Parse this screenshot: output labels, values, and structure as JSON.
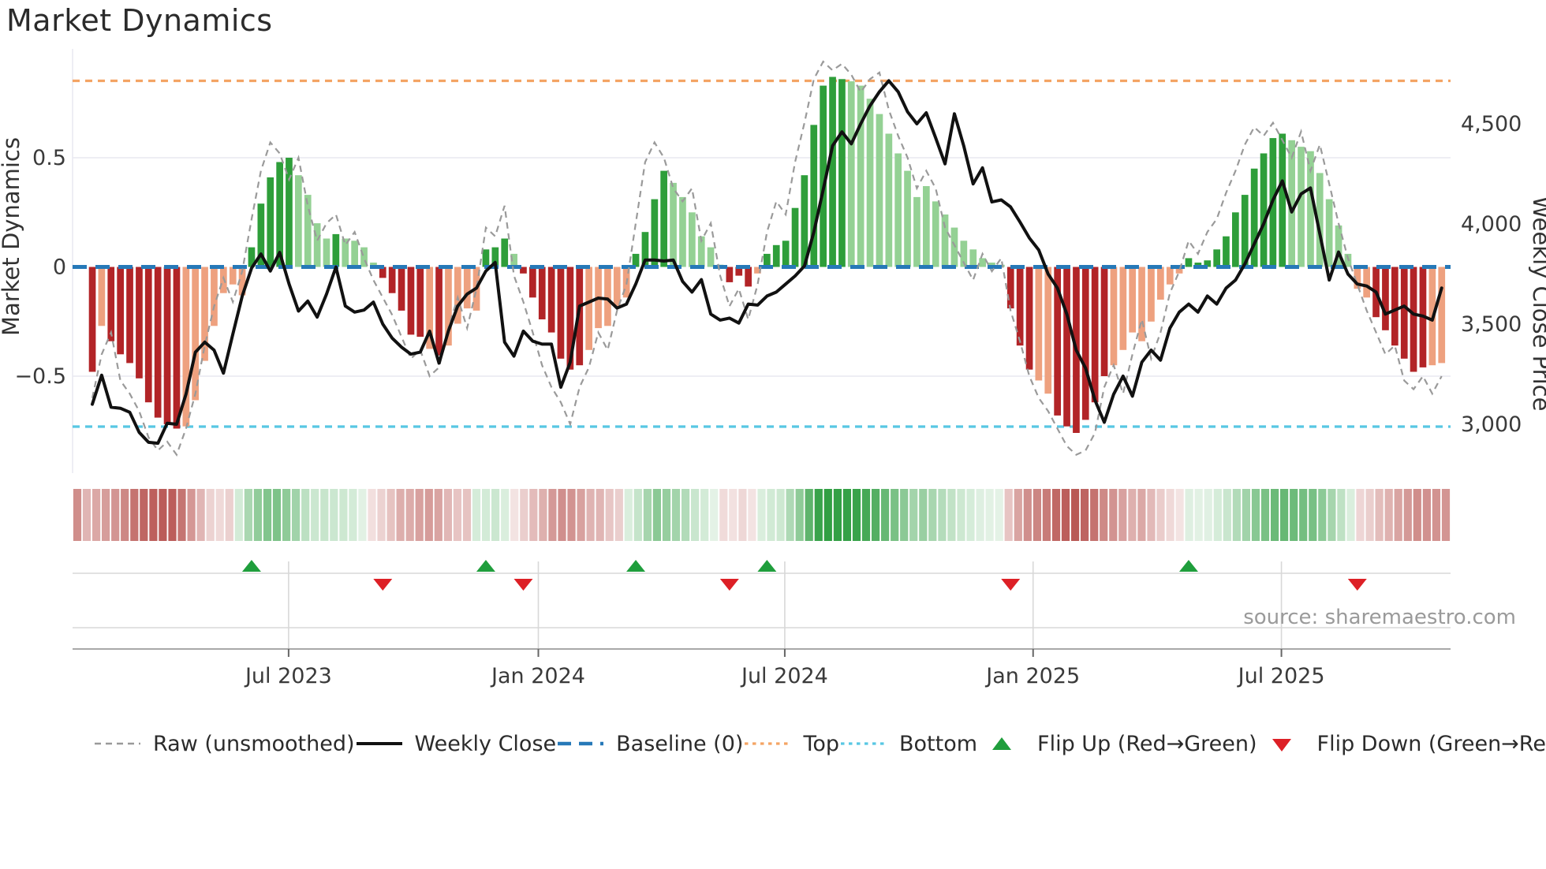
{
  "title": "Market Dynamics",
  "source": "source: sharemaestro.com",
  "axes": {
    "left": {
      "label": "Market Dynamics",
      "ticks": [
        {
          "value": 0.5,
          "label": "0.5"
        },
        {
          "value": 0,
          "label": "0"
        },
        {
          "value": -0.5,
          "label": "−0.5"
        }
      ]
    },
    "right": {
      "label": "Weekly Close Price",
      "ticks": [
        {
          "value": 4500,
          "label": "4,500"
        },
        {
          "value": 4000,
          "label": "4,000"
        },
        {
          "value": 3500,
          "label": "3,500"
        },
        {
          "value": 3000,
          "label": "3,000"
        }
      ]
    },
    "x": {
      "ticks": [
        {
          "week": 20.95,
          "label": "Jul 2023"
        },
        {
          "week": 47.6,
          "label": "Jan 2024"
        },
        {
          "week": 73.9,
          "label": "Jul 2024"
        },
        {
          "week": 100.4,
          "label": "Jan 2025"
        },
        {
          "week": 126.9,
          "label": "Jul 2025"
        }
      ]
    }
  },
  "legend": {
    "items": [
      {
        "key": "raw",
        "label": "Raw (unsmoothed)",
        "swatch": "dashed-line"
      },
      {
        "key": "close",
        "label": "Weekly Close",
        "swatch": "solid-line"
      },
      {
        "key": "baseline",
        "label": "Baseline (0)",
        "swatch": "long-dash-line"
      },
      {
        "key": "top",
        "label": "Top",
        "swatch": "dotted-line"
      },
      {
        "key": "bottom",
        "label": "Bottom",
        "swatch": "dotted-line"
      },
      {
        "key": "flip-up",
        "label": "Flip Up (Red→Green)",
        "swatch": "triangle-up"
      },
      {
        "key": "flip-down",
        "label": "Flip Down (Green→Red)",
        "swatch": "triangle-down"
      }
    ]
  },
  "colors": {
    "bar_red_strong": "#b22427",
    "bar_red_light": "#eea17f",
    "bar_green_strong": "#2e9e3a",
    "bar_green_light": "#94d194",
    "baseline_blue": "#2679b8",
    "top_orange": "#f4a464",
    "bottom_cyan": "#58c7e3",
    "raw_gray": "#9a9a9a",
    "close_black": "#111111",
    "grid": "#e9e9f1",
    "panel_grid": "#d8d8d8",
    "spine": "#a8a8a8",
    "tick_text": "#3a3a3a",
    "marker_up_green": "#1f9e3c",
    "marker_down_red": "#dd2026",
    "heat_red_base": "#b0423e",
    "heat_green_base": "#2f9e41"
  },
  "chart_data": {
    "type": "bar+line",
    "description": "Weekly market-dynamics oscillator bars (left axis) with raw unsmoothed dashed line, weekly close price line (right axis), baseline 0, top/bottom reference bands, regime heatmap strip and red/green flip markers",
    "n_weeks": 145,
    "baseline": 0,
    "top_line": 0.852,
    "bottom_line": -0.731,
    "left_range": [
      -0.85,
      0.95
    ],
    "right_range": [
      2850,
      4750
    ],
    "oscillator": [
      -0.48,
      -0.27,
      -0.34,
      -0.4,
      -0.44,
      -0.51,
      -0.62,
      -0.69,
      -0.72,
      -0.74,
      -0.73,
      -0.61,
      -0.43,
      -0.27,
      -0.12,
      -0.08,
      -0.13,
      0.09,
      0.29,
      0.41,
      0.48,
      0.5,
      0.42,
      0.33,
      0.2,
      0.13,
      0.15,
      0.13,
      0.12,
      0.09,
      0.02,
      -0.05,
      -0.12,
      -0.2,
      -0.31,
      -0.32,
      -0.375,
      -0.405,
      -0.36,
      -0.26,
      -0.19,
      -0.2,
      0.08,
      0.09,
      0.13,
      0.06,
      -0.03,
      -0.14,
      -0.24,
      -0.3,
      -0.42,
      -0.47,
      -0.45,
      -0.38,
      -0.28,
      -0.27,
      -0.18,
      -0.14,
      0.06,
      0.16,
      0.31,
      0.44,
      0.385,
      0.32,
      0.25,
      0.14,
      0.09,
      0.01,
      -0.07,
      -0.04,
      -0.09,
      -0.03,
      0.06,
      0.1,
      0.12,
      0.27,
      0.42,
      0.65,
      0.83,
      0.87,
      0.86,
      0.85,
      0.83,
      0.77,
      0.7,
      0.61,
      0.52,
      0.44,
      0.32,
      0.37,
      0.3,
      0.24,
      0.18,
      0.12,
      0.08,
      0.04,
      0.02,
      0.01,
      -0.19,
      -0.36,
      -0.47,
      -0.52,
      -0.58,
      -0.68,
      -0.73,
      -0.76,
      -0.7,
      -0.62,
      -0.5,
      -0.45,
      -0.38,
      -0.3,
      -0.34,
      -0.25,
      -0.15,
      -0.08,
      -0.03,
      0.04,
      0.02,
      0.03,
      0.08,
      0.14,
      0.25,
      0.33,
      0.45,
      0.52,
      0.59,
      0.61,
      0.58,
      0.55,
      0.53,
      0.43,
      0.31,
      0.19,
      0.06,
      -0.1,
      -0.14,
      -0.23,
      -0.29,
      -0.36,
      -0.42,
      -0.48,
      -0.46,
      -0.45,
      -0.44
    ],
    "shade": [
      "D",
      "L",
      "D",
      "D",
      "D",
      "D",
      "D",
      "D",
      "D",
      "D",
      "L",
      "L",
      "L",
      "L",
      "L",
      "L",
      "L",
      "D",
      "D",
      "D",
      "D",
      "D",
      "L",
      "L",
      "L",
      "L",
      "D",
      "L",
      "L",
      "L",
      "L",
      "D",
      "D",
      "D",
      "D",
      "D",
      "L",
      "D",
      "L",
      "L",
      "L",
      "L",
      "D",
      "D",
      "D",
      "L",
      "D",
      "D",
      "D",
      "D",
      "D",
      "D",
      "D",
      "L",
      "L",
      "L",
      "L",
      "L",
      "D",
      "D",
      "D",
      "D",
      "L",
      "L",
      "L",
      "L",
      "L",
      "L",
      "D",
      "D",
      "D",
      "L",
      "D",
      "D",
      "D",
      "D",
      "D",
      "D",
      "D",
      "D",
      "D",
      "L",
      "L",
      "L",
      "L",
      "L",
      "L",
      "L",
      "L",
      "L",
      "L",
      "L",
      "L",
      "L",
      "L",
      "L",
      "L",
      "L",
      "D",
      "D",
      "D",
      "L",
      "L",
      "D",
      "D",
      "D",
      "D",
      "D",
      "D",
      "L",
      "L",
      "L",
      "L",
      "L",
      "L",
      "L",
      "L",
      "D",
      "D",
      "D",
      "D",
      "D",
      "D",
      "D",
      "D",
      "D",
      "D",
      "D",
      "L",
      "L",
      "L",
      "L",
      "L",
      "L",
      "L",
      "L",
      "L",
      "D",
      "D",
      "D",
      "D",
      "D",
      "D",
      "L",
      "L"
    ],
    "raw": [
      -0.6,
      -0.4,
      -0.3,
      -0.52,
      -0.58,
      -0.66,
      -0.78,
      -0.84,
      -0.8,
      -0.86,
      -0.74,
      -0.58,
      -0.36,
      -0.18,
      -0.05,
      -0.16,
      -0.02,
      0.22,
      0.44,
      0.57,
      0.52,
      0.4,
      0.5,
      0.28,
      0.12,
      0.2,
      0.24,
      0.1,
      0.16,
      0.04,
      -0.06,
      -0.14,
      -0.22,
      -0.32,
      -0.42,
      -0.38,
      -0.5,
      -0.46,
      -0.28,
      -0.14,
      -0.28,
      -0.1,
      0.18,
      0.14,
      0.28,
      -0.04,
      -0.16,
      -0.3,
      -0.45,
      -0.55,
      -0.62,
      -0.72,
      -0.55,
      -0.46,
      -0.3,
      -0.38,
      -0.2,
      -0.08,
      0.2,
      0.48,
      0.57,
      0.5,
      0.36,
      0.3,
      0.36,
      0.12,
      0.2,
      -0.04,
      -0.18,
      -0.1,
      -0.24,
      -0.08,
      0.16,
      0.3,
      0.24,
      0.48,
      0.66,
      0.86,
      0.94,
      0.9,
      0.93,
      0.88,
      0.8,
      0.86,
      0.89,
      0.72,
      0.6,
      0.5,
      0.36,
      0.44,
      0.36,
      0.18,
      0.1,
      0.02,
      -0.06,
      0.06,
      -0.02,
      0.04,
      -0.2,
      -0.34,
      -0.5,
      -0.6,
      -0.66,
      -0.74,
      -0.82,
      -0.86,
      -0.84,
      -0.76,
      -0.55,
      -0.45,
      -0.58,
      -0.4,
      -0.24,
      -0.42,
      -0.3,
      -0.12,
      -0.02,
      0.12,
      0.06,
      0.16,
      0.22,
      0.34,
      0.44,
      0.56,
      0.64,
      0.6,
      0.66,
      0.58,
      0.5,
      0.62,
      0.44,
      0.56,
      0.38,
      0.2,
      0.04,
      -0.08,
      -0.2,
      -0.3,
      -0.4,
      -0.36,
      -0.52,
      -0.56,
      -0.5,
      -0.58,
      -0.5
    ],
    "weekly_close": [
      3100,
      3245,
      3085,
      3080,
      3060,
      2960,
      2910,
      2905,
      3005,
      3000,
      3150,
      3360,
      3410,
      3370,
      3255,
      3450,
      3640,
      3780,
      3850,
      3765,
      3858,
      3700,
      3565,
      3615,
      3535,
      3650,
      3785,
      3590,
      3560,
      3570,
      3610,
      3500,
      3430,
      3385,
      3350,
      3360,
      3465,
      3305,
      3465,
      3590,
      3650,
      3680,
      3765,
      3808,
      3410,
      3340,
      3465,
      3415,
      3400,
      3400,
      3185,
      3310,
      3590,
      3610,
      3630,
      3625,
      3580,
      3600,
      3700,
      3820,
      3820,
      3815,
      3820,
      3713,
      3660,
      3722,
      3550,
      3520,
      3530,
      3505,
      3600,
      3595,
      3640,
      3660,
      3700,
      3740,
      3790,
      3960,
      4170,
      4390,
      4460,
      4400,
      4500,
      4590,
      4660,
      4715,
      4660,
      4560,
      4500,
      4555,
      4430,
      4300,
      4550,
      4390,
      4200,
      4280,
      4110,
      4120,
      4085,
      4010,
      3930,
      3870,
      3750,
      3680,
      3550,
      3370,
      3280,
      3120,
      3010,
      3150,
      3240,
      3140,
      3310,
      3370,
      3320,
      3480,
      3560,
      3600,
      3560,
      3640,
      3600,
      3680,
      3720,
      3800,
      3900,
      4000,
      4120,
      4215,
      4060,
      4150,
      4180,
      3950,
      3720,
      3860,
      3750,
      3700,
      3690,
      3660,
      3550,
      3570,
      3590,
      3550,
      3540,
      3520,
      3680
    ],
    "flip_up_weeks": [
      17,
      42,
      58,
      72,
      117
    ],
    "flip_down_weeks": [
      31,
      46,
      68,
      98,
      135
    ]
  }
}
